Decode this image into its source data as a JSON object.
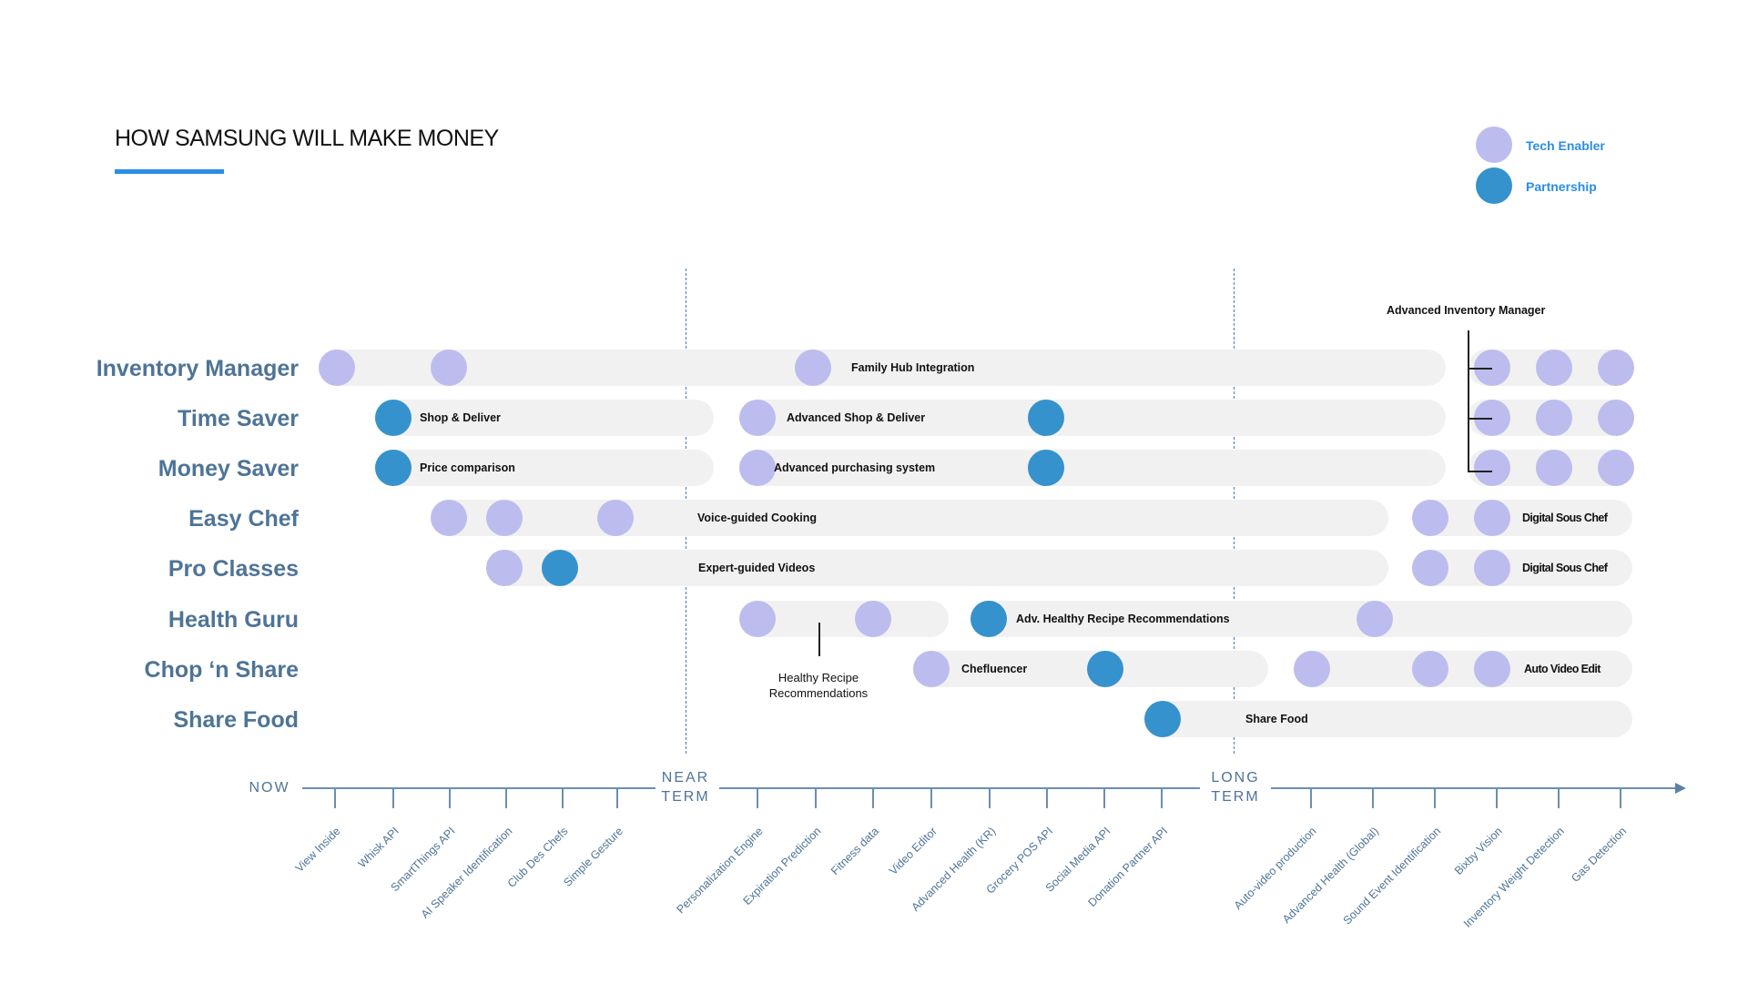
{
  "title": "HOW SAMSUNG WILL MAKE MONEY",
  "colors": {
    "tech": "#bcbdee",
    "partner": "#3592cc",
    "accent": "#2a8ee6",
    "label": "#4e7497"
  },
  "legend": {
    "tech_label": "Tech Enabler",
    "partnership_label": "Partnership"
  },
  "rows": [
    "Inventory Manager",
    "Time Saver",
    "Money Saver",
    "Easy Chef",
    "Pro Classes",
    "Health Guru",
    "Chop ‘n Share",
    "Share Food"
  ],
  "initiatives": {
    "family_hub": "Family Hub Integration",
    "shop_deliver": "Shop & Deliver",
    "adv_shop_deliver": "Advanced Shop & Deliver",
    "price_comparison": "Price comparison",
    "adv_purchasing": "Advanced purchasing system",
    "voice_cooking": "Voice-guided Cooking",
    "sous_chef_1": "Digital Sous Chef",
    "expert_videos": "Expert-guided Videos",
    "sous_chef_2": "Digital Sous Chef",
    "adv_healthy": "Adv. Healthy Recipe Recommendations",
    "chefluencer": "Chefluencer",
    "auto_video_edit": "Auto Video Edit",
    "share_food": "Share Food",
    "adv_inventory": "Advanced Inventory Manager",
    "healthy_recipe": "Healthy Recipe\nRecommendations"
  },
  "axis": {
    "now": "NOW",
    "near": "NEAR\nTERM",
    "long": "LONG\nTERM"
  },
  "ticks": [
    "View Inside",
    "Whisk API",
    "SmartThings API",
    "AI Speaker Identification",
    "Club Des Chefs",
    "Simple Gesture",
    "Personalization Engine",
    "Expiration Prediction",
    "Fitness data",
    "Video Editor",
    "Advanced Health (KR)",
    "Grocery POS API",
    "Social Media API",
    "Donation Partner API",
    "Auto-video production",
    "Advanced Health (Global)",
    "Sound Event Identification",
    "Bixby Vision",
    "Inventory Weight Detection",
    "Gas Detection"
  ]
}
